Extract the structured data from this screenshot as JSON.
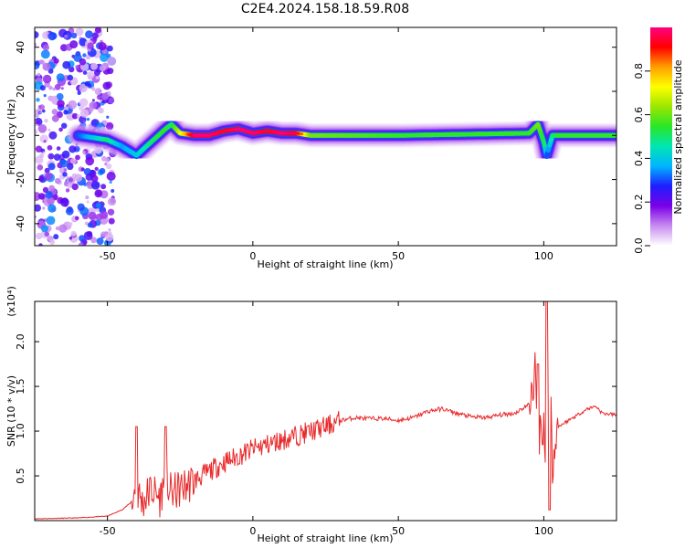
{
  "title": "C2E4.2024.158.18.59.R08",
  "chart_data": [
    {
      "type": "heatmap",
      "xlabel": "Height of straight line (km)",
      "ylabel": "Frequency (Hz)",
      "xlim": [
        -75,
        125
      ],
      "ylim": [
        -50,
        49
      ],
      "xticks": [
        -50,
        0,
        50,
        100
      ],
      "yticks": [
        -40,
        -20,
        0,
        20,
        40
      ],
      "grid": false,
      "colorbar": {
        "label": "Normalized spectral amplitude",
        "range": [
          0,
          1
        ],
        "ticks": [
          0.0,
          0.2,
          0.4,
          0.6,
          0.8
        ],
        "colormap": "rainbow",
        "stops": [
          "#ffffff",
          "#c88cf0",
          "#7a00e6",
          "#1e1eff",
          "#00b4ff",
          "#00e6b4",
          "#28e628",
          "#9be600",
          "#ffff00",
          "#ffa000",
          "#ff0000",
          "#ff0080"
        ]
      },
      "ridge": {
        "x": [
          -60,
          -55,
          -50,
          -45,
          -40,
          -35,
          -30,
          -28,
          -25,
          -20,
          -15,
          -10,
          -5,
          0,
          5,
          10,
          15,
          20,
          50,
          95,
          98,
          100,
          101,
          103,
          105,
          110,
          125
        ],
        "y": [
          0,
          -1,
          -2,
          -5,
          -9,
          -3,
          3,
          5,
          1,
          0,
          0,
          2,
          3,
          1,
          2,
          1,
          1,
          0,
          0,
          1,
          5,
          -3,
          -9,
          0,
          0,
          0,
          0
        ],
        "amplitude": [
          0.3,
          0.4,
          0.5,
          0.35,
          0.4,
          0.5,
          0.55,
          0.5,
          0.7,
          0.95,
          0.95,
          0.9,
          0.95,
          0.95,
          0.9,
          0.95,
          0.9,
          0.6,
          0.55,
          0.55,
          0.6,
          0.5,
          0.3,
          0.5,
          0.55,
          0.55,
          0.55
        ]
      },
      "noise_region_x": [
        -75,
        -48
      ]
    },
    {
      "type": "line",
      "xlabel": "Height of straight line (km)",
      "ylabel": "SNR (10 * v/v)",
      "yscale_label": "(x10⁴)",
      "xlim": [
        -75,
        125
      ],
      "ylim": [
        0,
        2.45
      ],
      "xticks": [
        -50,
        0,
        50,
        100
      ],
      "yticks": [
        0.5,
        1.0,
        1.5,
        2.0
      ],
      "ytick_labels": [
        "0.5",
        "1.0",
        "1.5",
        "2.0"
      ],
      "grid": false,
      "series": [
        {
          "color": "#e8292b",
          "x": [
            -75,
            -60,
            -50,
            -45,
            -42,
            -40,
            -38,
            -35,
            -32,
            -30,
            -28,
            -25,
            -20,
            -15,
            -10,
            -5,
            0,
            5,
            10,
            15,
            20,
            25,
            30,
            35,
            40,
            45,
            50,
            55,
            60,
            65,
            70,
            75,
            80,
            85,
            90,
            95,
            97,
            98,
            100,
            101,
            102,
            103,
            104,
            105,
            110,
            115,
            118,
            120,
            125
          ],
          "y": [
            0.02,
            0.03,
            0.05,
            0.12,
            0.2,
            0.35,
            0.2,
            0.35,
            0.25,
            0.45,
            0.3,
            0.35,
            0.45,
            0.55,
            0.65,
            0.72,
            0.8,
            0.85,
            0.9,
            0.95,
            1.0,
            1.05,
            1.12,
            1.15,
            1.14,
            1.14,
            1.12,
            1.15,
            1.22,
            1.25,
            1.2,
            1.16,
            1.15,
            1.18,
            1.2,
            1.3,
            1.65,
            0.95,
            1.1,
            0.25,
            2.3,
            0.4,
            1.0,
            1.05,
            1.15,
            1.25,
            1.28,
            1.2,
            1.18
          ],
          "spikes": [
            {
              "x": -40,
              "y": 1.05
            },
            {
              "x": -30,
              "y": 1.05
            },
            {
              "x": 98,
              "y": 1.75
            },
            {
              "x": 101,
              "y": 2.45
            },
            {
              "x": 102,
              "y": 0.12
            }
          ]
        }
      ]
    }
  ]
}
